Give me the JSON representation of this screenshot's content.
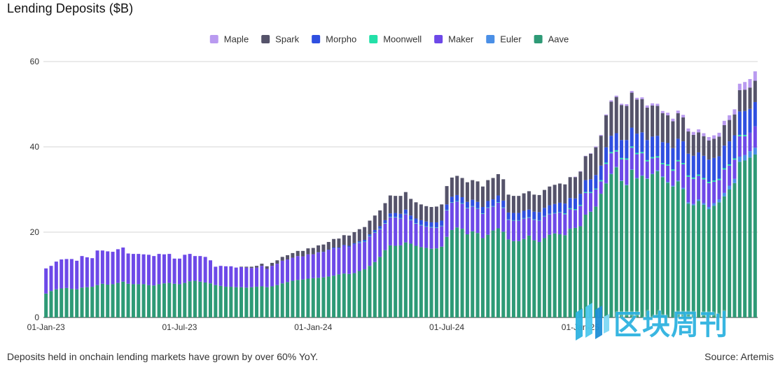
{
  "title": "Lending Deposits ($B)",
  "caption": "Deposits held in onchain lending markets have grown by over 60% YoY.",
  "source": "Source: Artemis",
  "watermark": {
    "text": "区块周刊",
    "logo": "blocks-logo-icon"
  },
  "chart_data": {
    "type": "bar",
    "stacked": true,
    "title": "Lending Deposits ($B)",
    "xlabel": "",
    "ylabel": "",
    "ylim": [
      0,
      60
    ],
    "yticks": [
      0,
      20,
      40,
      60
    ],
    "xtick_labels": [
      {
        "label": "01-Jan-23",
        "index": 0
      },
      {
        "label": "01-Jul-23",
        "index": 26
      },
      {
        "label": "01-Jan-24",
        "index": 52
      },
      {
        "label": "01-Jul-24",
        "index": 78
      },
      {
        "label": "01-Jan-25",
        "index": 104
      }
    ],
    "grid": "horizontal",
    "legend_position": "top",
    "period": "weekly",
    "series": [
      {
        "name": "Aave",
        "color": "#2e9a76",
        "values": [
          5.6,
          6.2,
          6.6,
          6.8,
          6.9,
          6.7,
          6.6,
          7.0,
          7.1,
          7.2,
          7.6,
          7.9,
          7.7,
          7.8,
          8.1,
          8.4,
          7.9,
          7.8,
          7.8,
          7.8,
          7.6,
          7.5,
          7.8,
          8.0,
          8.1,
          7.9,
          7.8,
          8.1,
          8.5,
          8.6,
          8.4,
          8.2,
          8.0,
          7.6,
          7.4,
          7.2,
          7.2,
          7.1,
          7.1,
          7.0,
          7.1,
          7.2,
          7.3,
          7.1,
          7.3,
          7.6,
          8.0,
          8.3,
          8.6,
          8.8,
          8.9,
          9.1,
          9.2,
          9.3,
          9.4,
          9.6,
          9.8,
          10.1,
          10.3,
          10.2,
          10.4,
          10.9,
          11.3,
          12.1,
          13.0,
          14.2,
          15.8,
          16.9,
          16.8,
          16.9,
          17.6,
          17.3,
          16.8,
          16.5,
          16.3,
          16.1,
          16.2,
          16.6,
          18.9,
          20.5,
          21.1,
          20.8,
          19.5,
          20.2,
          19.8,
          18.6,
          19.4,
          20.4,
          20.9,
          20.1,
          18.3,
          17.9,
          17.9,
          18.4,
          19.2,
          18.1,
          17.7,
          18.6,
          19.4,
          19.7,
          19.5,
          19.3,
          20.8,
          21.0,
          21.4,
          24.1,
          24.8,
          26.0,
          29.0,
          31.4,
          33.6,
          35.2,
          32.0,
          31.0,
          34.6,
          32.6,
          33.2,
          32.5,
          33.6,
          34.3,
          32.9,
          31.6,
          30.7,
          31.9,
          30.1,
          26.7,
          26.3,
          27.3,
          26.4,
          25.4,
          26.2,
          27.0,
          28.4,
          30.0,
          31.5,
          36.5,
          36.8,
          37.5,
          38.2
        ]
      },
      {
        "name": "Euler",
        "color": "#4a8fe6",
        "values": [
          0.0,
          0.0,
          0.0,
          0.0,
          0.0,
          0.0,
          0.0,
          0.0,
          0.0,
          0.0,
          0.0,
          0.0,
          0.0,
          0.0,
          0.0,
          0.0,
          0.0,
          0.0,
          0.0,
          0.0,
          0.0,
          0.0,
          0.0,
          0.0,
          0.0,
          0.0,
          0.0,
          0.0,
          0.0,
          0.0,
          0.0,
          0.0,
          0.0,
          0.0,
          0.0,
          0.0,
          0.0,
          0.0,
          0.0,
          0.0,
          0.0,
          0.0,
          0.0,
          0.0,
          0.0,
          0.0,
          0.0,
          0.0,
          0.0,
          0.0,
          0.0,
          0.0,
          0.0,
          0.0,
          0.0,
          0.0,
          0.0,
          0.0,
          0.0,
          0.0,
          0.0,
          0.0,
          0.0,
          0.0,
          0.0,
          0.0,
          0.0,
          0.0,
          0.0,
          0.0,
          0.0,
          0.0,
          0.0,
          0.0,
          0.0,
          0.0,
          0.0,
          0.0,
          0.0,
          0.0,
          0.0,
          0.0,
          0.0,
          0.0,
          0.0,
          0.0,
          0.0,
          0.0,
          0.0,
          0.0,
          0.0,
          0.0,
          0.0,
          0.0,
          0.0,
          0.0,
          0.0,
          0.0,
          0.0,
          0.0,
          0.0,
          0.0,
          0.0,
          0.0,
          0.0,
          0.0,
          0.0,
          0.0,
          0.0,
          0.1,
          0.1,
          0.1,
          0.1,
          0.1,
          0.1,
          0.1,
          0.1,
          0.1,
          0.1,
          0.2,
          0.2,
          0.2,
          0.2,
          0.2,
          0.3,
          0.3,
          0.3,
          0.4,
          0.4,
          0.5,
          0.6,
          0.7,
          0.8,
          0.9,
          1.0,
          1.2,
          1.3,
          1.5,
          1.6
        ]
      },
      {
        "name": "Maker",
        "color": "#6d49e8",
        "values": [
          5.9,
          5.9,
          6.5,
          6.8,
          6.8,
          7.0,
          6.7,
          7.4,
          7.0,
          6.7,
          8.1,
          7.8,
          7.8,
          7.6,
          7.9,
          8.0,
          7.1,
          7.1,
          7.1,
          7.0,
          7.1,
          6.9,
          7.1,
          6.8,
          6.8,
          5.9,
          6.0,
          6.6,
          6.4,
          5.8,
          6.0,
          6.0,
          5.4,
          4.3,
          4.7,
          4.8,
          4.8,
          4.6,
          4.7,
          4.7,
          4.5,
          4.5,
          4.8,
          4.3,
          4.8,
          5.0,
          5.3,
          5.3,
          5.4,
          5.6,
          5.4,
          5.7,
          5.6,
          5.9,
          5.9,
          6.2,
          6.4,
          6.1,
          6.5,
          6.3,
          6.7,
          6.6,
          6.4,
          6.9,
          6.9,
          6.5,
          6.2,
          6.6,
          6.7,
          6.3,
          6.6,
          5.5,
          5.2,
          5.1,
          5.0,
          5.0,
          4.8,
          4.8,
          6.2,
          6.4,
          6.1,
          5.9,
          6.1,
          5.8,
          5.7,
          5.7,
          6.3,
          5.6,
          6.0,
          5.6,
          4.6,
          4.8,
          4.8,
          4.8,
          4.2,
          4.8,
          5.0,
          5.1,
          4.8,
          4.7,
          5.1,
          4.9,
          4.6,
          4.2,
          4.8,
          5.1,
          4.4,
          4.0,
          2.9,
          4.5,
          4.8,
          3.6,
          5.0,
          5.9,
          5.1,
          5.6,
          5.2,
          4.0,
          3.6,
          3.0,
          2.8,
          3.8,
          3.5,
          4.5,
          5.5,
          6.0,
          5.9,
          5.5,
          5.6,
          5.6,
          5.0,
          4.5,
          5.5,
          4.7,
          4.5,
          4.8,
          4.4,
          4.3,
          5.0
        ]
      },
      {
        "name": "Moonwell",
        "color": "#23e0a8",
        "values": [
          0.0,
          0.0,
          0.0,
          0.0,
          0.0,
          0.0,
          0.0,
          0.0,
          0.0,
          0.0,
          0.0,
          0.0,
          0.0,
          0.0,
          0.0,
          0.0,
          0.0,
          0.0,
          0.0,
          0.0,
          0.0,
          0.0,
          0.0,
          0.0,
          0.0,
          0.0,
          0.0,
          0.0,
          0.0,
          0.0,
          0.0,
          0.0,
          0.0,
          0.0,
          0.0,
          0.0,
          0.0,
          0.0,
          0.0,
          0.0,
          0.0,
          0.0,
          0.0,
          0.0,
          0.0,
          0.0,
          0.0,
          0.0,
          0.0,
          0.0,
          0.0,
          0.0,
          0.0,
          0.0,
          0.0,
          0.0,
          0.0,
          0.0,
          0.0,
          0.0,
          0.0,
          0.1,
          0.1,
          0.1,
          0.1,
          0.1,
          0.1,
          0.1,
          0.1,
          0.1,
          0.1,
          0.1,
          0.1,
          0.1,
          0.1,
          0.1,
          0.1,
          0.1,
          0.1,
          0.1,
          0.1,
          0.1,
          0.1,
          0.1,
          0.1,
          0.1,
          0.1,
          0.1,
          0.1,
          0.1,
          0.1,
          0.1,
          0.1,
          0.1,
          0.1,
          0.1,
          0.1,
          0.1,
          0.1,
          0.1,
          0.1,
          0.2,
          0.2,
          0.2,
          0.2,
          0.2,
          0.2,
          0.2,
          0.3,
          0.3,
          0.3,
          0.3,
          0.3,
          0.3,
          0.3,
          0.3,
          0.3,
          0.3,
          0.3,
          0.3,
          0.3,
          0.3,
          0.3,
          0.3,
          0.3,
          0.3,
          0.3,
          0.3,
          0.3,
          0.3,
          0.3,
          0.3,
          0.3,
          0.3,
          0.3,
          0.3,
          0.3
        ]
      },
      {
        "name": "Morpho",
        "color": "#2f4fe0",
        "values": [
          0.0,
          0.0,
          0.0,
          0.0,
          0.0,
          0.0,
          0.0,
          0.0,
          0.0,
          0.0,
          0.0,
          0.0,
          0.0,
          0.0,
          0.0,
          0.0,
          0.0,
          0.0,
          0.0,
          0.0,
          0.0,
          0.0,
          0.0,
          0.0,
          0.0,
          0.0,
          0.0,
          0.0,
          0.0,
          0.0,
          0.0,
          0.0,
          0.0,
          0.0,
          0.0,
          0.0,
          0.0,
          0.0,
          0.0,
          0.0,
          0.0,
          0.0,
          0.0,
          0.0,
          0.0,
          0.0,
          0.0,
          0.0,
          0.0,
          0.0,
          0.0,
          0.0,
          0.0,
          0.1,
          0.1,
          0.1,
          0.2,
          0.2,
          0.2,
          0.3,
          0.3,
          0.3,
          0.4,
          0.4,
          0.5,
          0.6,
          0.7,
          0.8,
          0.9,
          1.0,
          1.0,
          1.0,
          1.1,
          1.1,
          1.1,
          1.1,
          1.2,
          1.2,
          1.3,
          1.3,
          1.4,
          1.4,
          1.4,
          1.5,
          1.5,
          1.5,
          1.5,
          1.6,
          1.6,
          1.6,
          1.6,
          1.7,
          1.7,
          1.7,
          1.8,
          1.8,
          1.9,
          1.9,
          2.0,
          2.1,
          2.2,
          2.3,
          2.4,
          2.5,
          2.6,
          2.8,
          3.0,
          3.2,
          3.4,
          3.6,
          3.8,
          4.0,
          4.2,
          4.3,
          4.4,
          4.5,
          4.6,
          4.7,
          4.8,
          4.8,
          4.9,
          5.0,
          5.0,
          5.0,
          5.1,
          5.1,
          5.1,
          5.2,
          5.2,
          5.2,
          5.3,
          5.3,
          5.3,
          5.4,
          5.4,
          5.5,
          5.6,
          5.6,
          5.7
        ]
      },
      {
        "name": "Spark",
        "color": "#55536a",
        "values": [
          0.0,
          0.0,
          0.0,
          0.0,
          0.0,
          0.0,
          0.0,
          0.0,
          0.0,
          0.0,
          0.0,
          0.0,
          0.0,
          0.0,
          0.0,
          0.0,
          0.0,
          0.0,
          0.0,
          0.0,
          0.0,
          0.0,
          0.0,
          0.0,
          0.0,
          0.0,
          0.0,
          0.0,
          0.0,
          0.0,
          0.0,
          0.0,
          0.0,
          0.0,
          0.0,
          0.0,
          0.0,
          0.0,
          0.1,
          0.2,
          0.3,
          0.4,
          0.5,
          0.6,
          0.7,
          0.8,
          0.9,
          1.0,
          1.1,
          1.2,
          1.3,
          1.4,
          1.5,
          1.6,
          1.7,
          1.8,
          2.0,
          2.1,
          2.3,
          2.4,
          2.6,
          2.8,
          3.0,
          3.2,
          3.4,
          3.7,
          4.0,
          4.2,
          4.0,
          4.2,
          4.1,
          3.9,
          3.8,
          3.7,
          3.6,
          3.6,
          3.7,
          3.8,
          4.3,
          4.5,
          4.5,
          4.5,
          4.6,
          4.6,
          4.8,
          4.8,
          4.9,
          5.0,
          5.0,
          5.0,
          4.2,
          4.0,
          4.0,
          4.1,
          4.3,
          4.0,
          4.0,
          4.2,
          4.4,
          4.5,
          4.5,
          4.5,
          4.9,
          5.0,
          5.2,
          5.6,
          6.0,
          6.5,
          7.0,
          7.5,
          8.0,
          8.5,
          8.2,
          8.0,
          8.2,
          8.0,
          7.8,
          7.6,
          7.3,
          7.0,
          6.8,
          6.5,
          6.3,
          6.0,
          5.6,
          5.2,
          4.9,
          4.7,
          4.6,
          4.5,
          4.5,
          4.6,
          4.8,
          5.0,
          4.9,
          5.0,
          5.0,
          5.0,
          5.0
        ]
      },
      {
        "name": "Maple",
        "color": "#b99af0",
        "values": [
          0.0,
          0.0,
          0.0,
          0.0,
          0.0,
          0.0,
          0.0,
          0.0,
          0.0,
          0.0,
          0.0,
          0.0,
          0.0,
          0.0,
          0.0,
          0.0,
          0.0,
          0.0,
          0.0,
          0.0,
          0.0,
          0.0,
          0.0,
          0.0,
          0.0,
          0.0,
          0.0,
          0.0,
          0.0,
          0.0,
          0.0,
          0.0,
          0.0,
          0.0,
          0.0,
          0.0,
          0.0,
          0.0,
          0.0,
          0.0,
          0.0,
          0.0,
          0.0,
          0.0,
          0.0,
          0.0,
          0.0,
          0.0,
          0.0,
          0.0,
          0.0,
          0.0,
          0.0,
          0.0,
          0.0,
          0.0,
          0.0,
          0.0,
          0.0,
          0.0,
          0.0,
          0.0,
          0.0,
          0.0,
          0.0,
          0.0,
          0.0,
          0.0,
          0.0,
          0.0,
          0.0,
          0.0,
          0.0,
          0.0,
          0.0,
          0.0,
          0.0,
          0.0,
          0.0,
          0.0,
          0.0,
          0.0,
          0.0,
          0.0,
          0.0,
          0.0,
          0.0,
          0.0,
          0.0,
          0.0,
          0.0,
          0.0,
          0.0,
          0.0,
          0.0,
          0.0,
          0.0,
          0.0,
          0.0,
          0.0,
          0.0,
          0.0,
          0.0,
          0.1,
          0.1,
          0.1,
          0.1,
          0.2,
          0.2,
          0.2,
          0.3,
          0.3,
          0.3,
          0.4,
          0.4,
          0.4,
          0.4,
          0.5,
          0.5,
          0.5,
          0.5,
          0.6,
          0.6,
          0.6,
          0.6,
          0.7,
          0.7,
          0.7,
          0.7,
          0.8,
          0.8,
          0.9,
          1.0,
          1.1,
          1.2,
          1.5,
          1.8,
          2.0,
          2.2
        ]
      }
    ],
    "legend": [
      {
        "name": "Maple",
        "color": "#b99af0"
      },
      {
        "name": "Spark",
        "color": "#55536a"
      },
      {
        "name": "Morpho",
        "color": "#2f4fe0"
      },
      {
        "name": "Moonwell",
        "color": "#23e0a8"
      },
      {
        "name": "Maker",
        "color": "#6d49e8"
      },
      {
        "name": "Euler",
        "color": "#4a8fe6"
      },
      {
        "name": "Aave",
        "color": "#2e9a76"
      }
    ]
  }
}
